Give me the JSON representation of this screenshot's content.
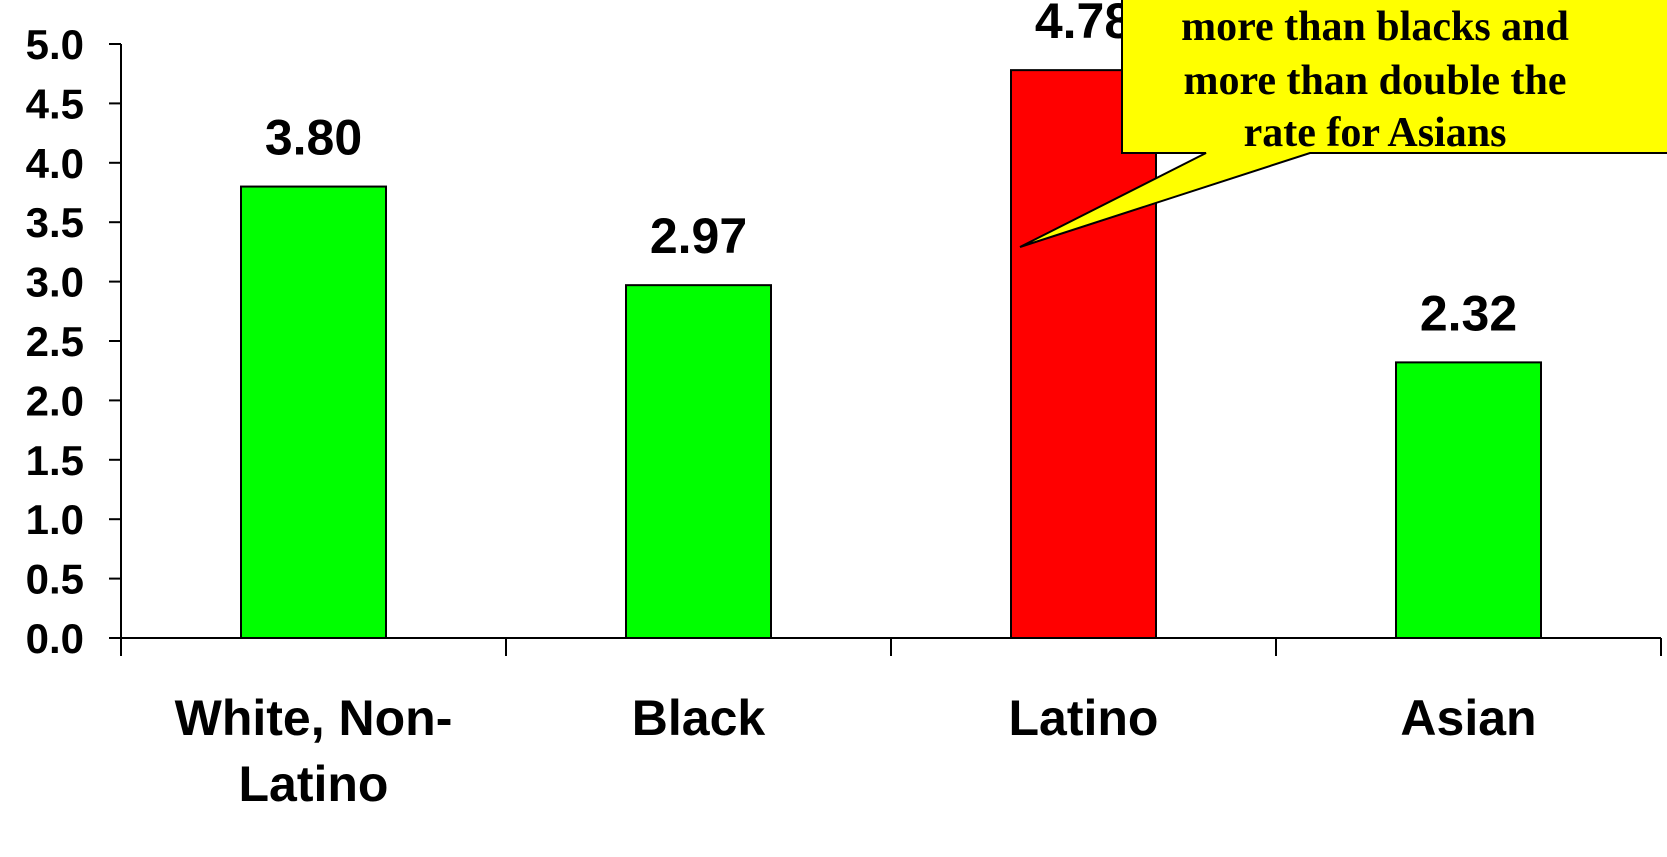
{
  "chart_data": {
    "type": "bar",
    "categories": [
      "White, Non-Latino",
      "Black",
      "Latino",
      "Asian"
    ],
    "category_lines": [
      [
        "White, Non-",
        "Latino"
      ],
      [
        "Black"
      ],
      [
        "Latino"
      ],
      [
        "Asian"
      ]
    ],
    "values": [
      3.8,
      2.97,
      4.78,
      2.32
    ],
    "value_labels": [
      "3.80",
      "2.97",
      "4.78",
      "2.32"
    ],
    "bar_colors": [
      "#00ff00",
      "#00ff00",
      "#ff0000",
      "#00ff00"
    ],
    "ylim": [
      0,
      5.0
    ],
    "y_ticks": [
      "0.0",
      "0.5",
      "1.0",
      "1.5",
      "2.0",
      "2.5",
      "3.0",
      "3.5",
      "4.0",
      "4.5",
      "5.0"
    ],
    "grid": false,
    "title": "",
    "xlabel": "",
    "ylabel": "",
    "annotation": {
      "lines": [
        "more than blacks and",
        "more than double the",
        "rate for Asians"
      ],
      "background": "#ffff00",
      "points_to": "Latino"
    }
  }
}
